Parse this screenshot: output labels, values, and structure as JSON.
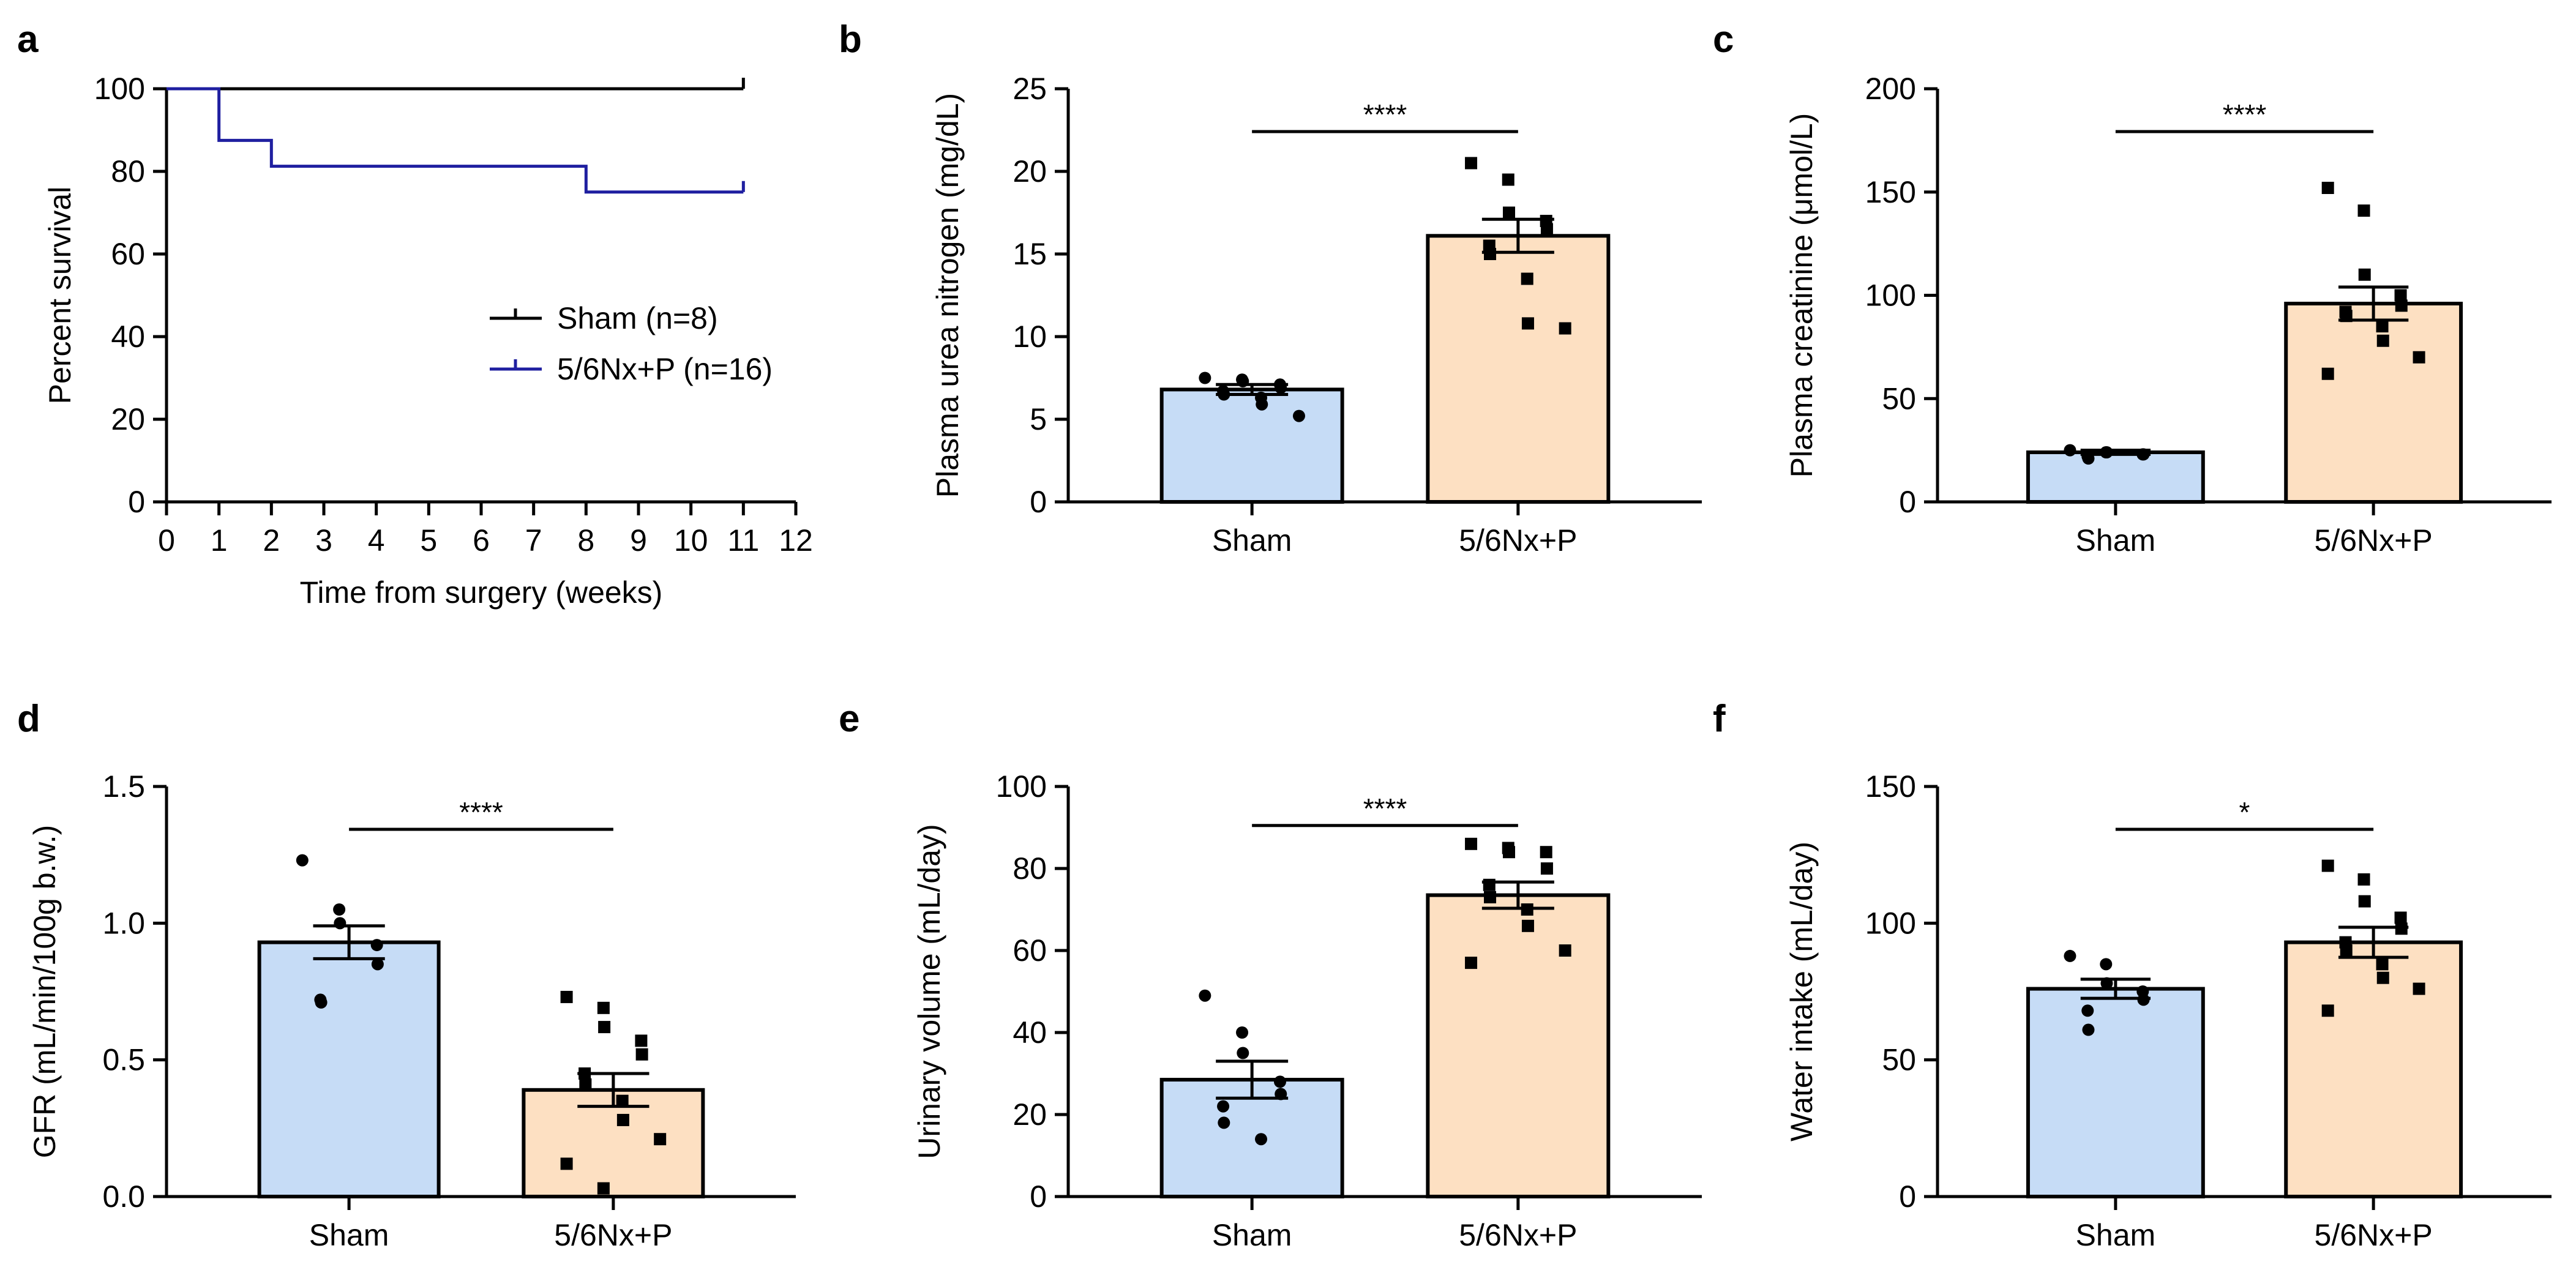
{
  "colors": {
    "sham_fill": "#c6dcf6",
    "nx_fill": "#fde0c2",
    "sham_line": "#000000",
    "nx_line": "#1f1fa0"
  },
  "chart_data": [
    {
      "id": "a",
      "panel_label": "a",
      "type": "line",
      "subtype": "kaplan-meier",
      "xlabel": "Time from surgery (weeks)",
      "ylabel": "Percent survival",
      "xlim": [
        0,
        12
      ],
      "ylim": [
        0,
        100
      ],
      "xticks": [
        "0",
        "1",
        "2",
        "3",
        "4",
        "5",
        "6",
        "7",
        "8",
        "9",
        "10",
        "11",
        "12"
      ],
      "yticks": [
        "0",
        "20",
        "40",
        "60",
        "80",
        "100"
      ],
      "legend": "right",
      "series": [
        {
          "name": "Sham (n=8)",
          "color": "#000000",
          "steps": [
            [
              0,
              100
            ],
            [
              11,
              100
            ]
          ]
        },
        {
          "name": "5/6Nx+P (n=16)",
          "color": "#1f1fa0",
          "steps": [
            [
              0,
              100
            ],
            [
              1,
              87.5
            ],
            [
              2,
              81.25
            ],
            [
              8,
              75
            ],
            [
              11,
              75
            ]
          ]
        }
      ]
    },
    {
      "id": "b",
      "panel_label": "b",
      "type": "bar",
      "categories": [
        "Sham",
        "5/6Nx+P"
      ],
      "values": [
        6.8,
        16.1
      ],
      "sem": [
        0.3,
        1.0
      ],
      "ylabel": "Plasma urea nitrogen (mg/dL)",
      "ylim": [
        0,
        25
      ],
      "yticks": [
        "0",
        "5",
        "10",
        "15",
        "20",
        "25"
      ],
      "significance": "****",
      "points": [
        [
          7.5,
          7.4,
          7.3,
          7.1,
          6.9,
          6.7,
          6.5,
          6.3,
          5.9,
          5.2
        ],
        [
          20.5,
          19.5,
          17.5,
          17.0,
          16.5,
          15.5,
          15.0,
          13.5,
          10.8,
          10.5
        ]
      ]
    },
    {
      "id": "c",
      "panel_label": "c",
      "type": "bar",
      "categories": [
        "Sham",
        "5/6Nx+P"
      ],
      "values": [
        24,
        96
      ],
      "sem": [
        1,
        8
      ],
      "ylabel": "Plasma creatinine (μmol/L)",
      "ylim": [
        0,
        200
      ],
      "yticks": [
        "0",
        "50",
        "100",
        "150",
        "200"
      ],
      "significance": "****",
      "points": [
        [
          25,
          24,
          24,
          23,
          23,
          22,
          21
        ],
        [
          152,
          141,
          110,
          100,
          95,
          92,
          90,
          85,
          78,
          70,
          62
        ]
      ]
    },
    {
      "id": "d",
      "panel_label": "d",
      "type": "bar",
      "categories": [
        "Sham",
        "5/6Nx+P"
      ],
      "values": [
        0.93,
        0.39
      ],
      "sem": [
        0.06,
        0.06
      ],
      "ylabel": "GFR (mL/min/100g b.w.)",
      "ylim": [
        0,
        1.5
      ],
      "yticks": [
        "0.0",
        "0.5",
        "1.0",
        "1.5"
      ],
      "significance": "****",
      "points": [
        [
          1.23,
          1.05,
          1.0,
          0.92,
          0.85,
          0.72,
          0.71
        ],
        [
          0.73,
          0.69,
          0.62,
          0.57,
          0.52,
          0.45,
          0.41,
          0.35,
          0.28,
          0.21,
          0.12,
          0.03
        ]
      ]
    },
    {
      "id": "e",
      "panel_label": "e",
      "type": "bar",
      "categories": [
        "Sham",
        "5/6Nx+P"
      ],
      "values": [
        28.5,
        73.5
      ],
      "sem": [
        4.5,
        3.2
      ],
      "ylabel": "Urinary volume (mL/day)",
      "ylim": [
        0,
        100
      ],
      "yticks": [
        "0",
        "20",
        "40",
        "60",
        "80",
        "100"
      ],
      "significance": "****",
      "points": [
        [
          49,
          40,
          35,
          28,
          25,
          22,
          18,
          14
        ],
        [
          86,
          85,
          84,
          84,
          80,
          76,
          73,
          70,
          66,
          60,
          57
        ]
      ]
    },
    {
      "id": "f",
      "panel_label": "f",
      "type": "bar",
      "categories": [
        "Sham",
        "5/6Nx+P"
      ],
      "values": [
        76,
        93
      ],
      "sem": [
        3.5,
        5.5
      ],
      "ylabel": "Water intake (mL/day)",
      "ylim": [
        0,
        150
      ],
      "yticks": [
        "0",
        "50",
        "100",
        "150"
      ],
      "significance": "*",
      "points": [
        [
          88,
          85,
          78,
          75,
          72,
          68,
          61
        ],
        [
          121,
          116,
          108,
          102,
          98,
          93,
          90,
          85,
          80,
          76,
          68
        ]
      ]
    }
  ]
}
